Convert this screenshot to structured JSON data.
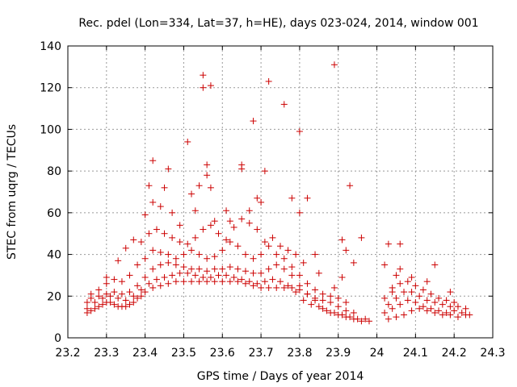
{
  "chart_data": {
    "type": "scatter",
    "title": "Rec. pdel (Lon=334, Lat=37, h=HE), days 023-024, 2014, window 001",
    "xlabel": "GPS time / Days of year 2014",
    "ylabel": "STEC from uqrg / TECUs",
    "xlim": [
      23.2,
      24.3
    ],
    "ylim": [
      0,
      140
    ],
    "xticks": [
      "23.2",
      "23.3",
      "23.4",
      "23.5",
      "23.6",
      "23.7",
      "23.8",
      "23.9",
      "24",
      "24.1",
      "24.2",
      "24.3"
    ],
    "yticks": [
      "0",
      "20",
      "40",
      "60",
      "80",
      "100",
      "120",
      "140"
    ],
    "grid": true,
    "marker": "+",
    "color": "#cc0000",
    "series": [
      {
        "points": [
          [
            23.25,
            12
          ],
          [
            23.26,
            13
          ],
          [
            23.27,
            14
          ],
          [
            23.28,
            15
          ],
          [
            23.29,
            16
          ],
          [
            23.3,
            17
          ],
          [
            23.31,
            17
          ],
          [
            23.32,
            16
          ],
          [
            23.33,
            15
          ],
          [
            23.34,
            15
          ],
          [
            23.35,
            15
          ],
          [
            23.36,
            16
          ],
          [
            23.37,
            17
          ],
          [
            23.38,
            19
          ],
          [
            23.39,
            20
          ],
          [
            23.4,
            22
          ],
          [
            23.42,
            24
          ],
          [
            23.44,
            25
          ],
          [
            23.46,
            26
          ],
          [
            23.48,
            27
          ],
          [
            23.5,
            27
          ],
          [
            23.52,
            27
          ],
          [
            23.54,
            27
          ],
          [
            23.56,
            27
          ],
          [
            23.58,
            27
          ],
          [
            23.6,
            27
          ],
          [
            23.62,
            27
          ],
          [
            23.64,
            27
          ],
          [
            23.66,
            26
          ],
          [
            23.68,
            25
          ],
          [
            23.7,
            24
          ],
          [
            23.72,
            24
          ],
          [
            23.74,
            24
          ],
          [
            23.76,
            24
          ],
          [
            23.78,
            24
          ],
          [
            23.8,
            23
          ],
          [
            23.82,
            21
          ],
          [
            23.84,
            18
          ],
          [
            23.86,
            14
          ],
          [
            23.88,
            12
          ],
          [
            23.9,
            11
          ],
          [
            23.92,
            10
          ],
          [
            23.94,
            9
          ],
          [
            23.96,
            8
          ],
          [
            23.98,
            8
          ],
          [
            24.03,
            9
          ],
          [
            24.05,
            10
          ],
          [
            24.07,
            11
          ],
          [
            24.09,
            13
          ],
          [
            24.11,
            14
          ],
          [
            24.13,
            13
          ],
          [
            24.15,
            12
          ],
          [
            24.17,
            11
          ],
          [
            24.19,
            11
          ],
          [
            24.21,
            10
          ],
          [
            24.23,
            11
          ],
          [
            24.24,
            11
          ],
          [
            23.25,
            14
          ],
          [
            23.27,
            17
          ],
          [
            23.29,
            19
          ],
          [
            23.31,
            20
          ],
          [
            23.33,
            19
          ],
          [
            23.35,
            18
          ],
          [
            23.37,
            20
          ],
          [
            23.39,
            23
          ],
          [
            23.41,
            26
          ],
          [
            23.43,
            28
          ],
          [
            23.45,
            29
          ],
          [
            23.47,
            30
          ],
          [
            23.49,
            31
          ],
          [
            23.51,
            31
          ],
          [
            23.53,
            30
          ],
          [
            23.55,
            29
          ],
          [
            23.57,
            29
          ],
          [
            23.59,
            30
          ],
          [
            23.61,
            30
          ],
          [
            23.63,
            29
          ],
          [
            23.65,
            28
          ],
          [
            23.67,
            27
          ],
          [
            23.69,
            26
          ],
          [
            23.71,
            27
          ],
          [
            23.73,
            28
          ],
          [
            23.75,
            27
          ],
          [
            23.77,
            25
          ],
          [
            23.79,
            22
          ],
          [
            23.81,
            18
          ],
          [
            23.83,
            16
          ],
          [
            23.85,
            15
          ],
          [
            23.87,
            13
          ],
          [
            23.89,
            12
          ],
          [
            23.91,
            11
          ],
          [
            23.93,
            10
          ],
          [
            23.95,
            9
          ],
          [
            23.97,
            9
          ],
          [
            24.02,
            12
          ],
          [
            24.04,
            14
          ],
          [
            24.06,
            16
          ],
          [
            24.08,
            18
          ],
          [
            24.1,
            17
          ],
          [
            24.12,
            15
          ],
          [
            24.14,
            14
          ],
          [
            24.16,
            13
          ],
          [
            24.18,
            12
          ],
          [
            24.2,
            13
          ],
          [
            24.22,
            12
          ],
          [
            23.25,
            17
          ],
          [
            23.26,
            19
          ],
          [
            23.28,
            20
          ],
          [
            23.3,
            21
          ],
          [
            23.32,
            22
          ],
          [
            23.34,
            21
          ],
          [
            23.36,
            22
          ],
          [
            23.38,
            25
          ],
          [
            23.4,
            29
          ],
          [
            23.42,
            33
          ],
          [
            23.44,
            35
          ],
          [
            23.46,
            36
          ],
          [
            23.48,
            35
          ],
          [
            23.5,
            34
          ],
          [
            23.52,
            33
          ],
          [
            23.54,
            33
          ],
          [
            23.56,
            32
          ],
          [
            23.58,
            33
          ],
          [
            23.6,
            33
          ],
          [
            23.62,
            34
          ],
          [
            23.64,
            33
          ],
          [
            23.66,
            32
          ],
          [
            23.68,
            31
          ],
          [
            23.7,
            31
          ],
          [
            23.72,
            33
          ],
          [
            23.74,
            35
          ],
          [
            23.76,
            33
          ],
          [
            23.78,
            30
          ],
          [
            23.8,
            25
          ],
          [
            23.82,
            21
          ],
          [
            23.84,
            19
          ],
          [
            23.86,
            18
          ],
          [
            23.88,
            17
          ],
          [
            23.9,
            15
          ],
          [
            23.92,
            13
          ],
          [
            23.94,
            12
          ],
          [
            24.03,
            16
          ],
          [
            24.05,
            19
          ],
          [
            24.07,
            22
          ],
          [
            24.09,
            22
          ],
          [
            24.11,
            20
          ],
          [
            24.13,
            18
          ],
          [
            24.15,
            17
          ],
          [
            24.17,
            16
          ],
          [
            24.19,
            15
          ],
          [
            24.21,
            15
          ],
          [
            24.23,
            14
          ],
          [
            23.26,
            21
          ],
          [
            23.28,
            23
          ],
          [
            23.3,
            26
          ],
          [
            23.32,
            28
          ],
          [
            23.34,
            27
          ],
          [
            23.36,
            30
          ],
          [
            23.38,
            35
          ],
          [
            23.4,
            38
          ],
          [
            23.42,
            42
          ],
          [
            23.44,
            41
          ],
          [
            23.46,
            40
          ],
          [
            23.48,
            38
          ],
          [
            23.5,
            40
          ],
          [
            23.52,
            42
          ],
          [
            23.54,
            40
          ],
          [
            23.56,
            38
          ],
          [
            23.58,
            39
          ],
          [
            23.6,
            42
          ],
          [
            23.62,
            46
          ],
          [
            23.64,
            44
          ],
          [
            23.66,
            40
          ],
          [
            23.68,
            38
          ],
          [
            23.7,
            40
          ],
          [
            23.72,
            44
          ],
          [
            23.74,
            40
          ],
          [
            23.76,
            38
          ],
          [
            23.78,
            34
          ],
          [
            23.8,
            30
          ],
          [
            23.82,
            26
          ],
          [
            23.84,
            23
          ],
          [
            23.86,
            21
          ],
          [
            23.88,
            20
          ],
          [
            23.9,
            19
          ],
          [
            23.92,
            17
          ],
          [
            24.04,
            24
          ],
          [
            24.06,
            26
          ],
          [
            24.08,
            27
          ],
          [
            24.1,
            25
          ],
          [
            24.12,
            23
          ],
          [
            24.14,
            21
          ],
          [
            24.16,
            19
          ],
          [
            24.18,
            18
          ],
          [
            24.2,
            17
          ],
          [
            23.3,
            29
          ],
          [
            23.33,
            37
          ],
          [
            23.35,
            43
          ],
          [
            23.37,
            47
          ],
          [
            23.39,
            46
          ],
          [
            23.41,
            50
          ],
          [
            23.43,
            52
          ],
          [
            23.45,
            50
          ],
          [
            23.47,
            48
          ],
          [
            23.49,
            46
          ],
          [
            23.51,
            45
          ],
          [
            23.53,
            48
          ],
          [
            23.55,
            52
          ],
          [
            23.57,
            54
          ],
          [
            23.59,
            50
          ],
          [
            23.61,
            47
          ],
          [
            23.63,
            53
          ],
          [
            23.65,
            57
          ],
          [
            23.67,
            55
          ],
          [
            23.69,
            52
          ],
          [
            23.71,
            46
          ],
          [
            23.73,
            48
          ],
          [
            23.75,
            44
          ],
          [
            23.77,
            42
          ],
          [
            23.79,
            40
          ],
          [
            23.81,
            36
          ],
          [
            23.85,
            31
          ],
          [
            23.89,
            24
          ],
          [
            23.91,
            29
          ],
          [
            24.05,
            30
          ],
          [
            24.09,
            29
          ],
          [
            24.13,
            27
          ],
          [
            24.15,
            35
          ],
          [
            24.19,
            22
          ],
          [
            23.4,
            59
          ],
          [
            23.41,
            73
          ],
          [
            23.42,
            85
          ],
          [
            23.42,
            65
          ],
          [
            23.44,
            63
          ],
          [
            23.45,
            72
          ],
          [
            23.46,
            81
          ],
          [
            23.47,
            60
          ],
          [
            23.49,
            54
          ],
          [
            23.51,
            94
          ],
          [
            23.52,
            69
          ],
          [
            23.53,
            61
          ],
          [
            23.54,
            73
          ],
          [
            23.55,
            126
          ],
          [
            23.55,
            120
          ],
          [
            23.56,
            83
          ],
          [
            23.56,
            78
          ],
          [
            23.57,
            121
          ],
          [
            23.57,
            72
          ],
          [
            23.58,
            56
          ],
          [
            23.61,
            61
          ],
          [
            23.62,
            56
          ],
          [
            23.65,
            83
          ],
          [
            23.65,
            81
          ],
          [
            23.67,
            61
          ],
          [
            23.68,
            104
          ],
          [
            23.69,
            67
          ],
          [
            23.7,
            65
          ],
          [
            23.71,
            80
          ],
          [
            23.72,
            123
          ],
          [
            23.76,
            112
          ],
          [
            23.78,
            67
          ],
          [
            23.8,
            99
          ],
          [
            23.8,
            60
          ],
          [
            23.82,
            67
          ],
          [
            23.84,
            40
          ],
          [
            23.89,
            131
          ],
          [
            23.91,
            47
          ],
          [
            23.92,
            42
          ],
          [
            23.93,
            73
          ],
          [
            23.94,
            36
          ],
          [
            23.96,
            48
          ],
          [
            24.02,
            35
          ],
          [
            24.03,
            45
          ],
          [
            24.06,
            45
          ],
          [
            24.02,
            19
          ],
          [
            24.04,
            22
          ],
          [
            24.06,
            33
          ]
        ]
      }
    ]
  }
}
